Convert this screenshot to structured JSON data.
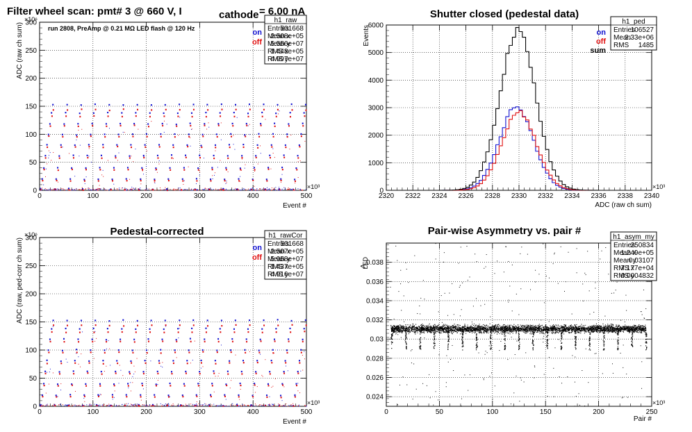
{
  "colors": {
    "on": "#1010d0",
    "off": "#e01010",
    "sum": "#000000",
    "text": "#000000"
  },
  "chart_data": [
    {
      "type": "scatter",
      "id": "raw",
      "title": "Filter wheel scan: pmt#   3 @   660 V, I",
      "title_sub": "cathode",
      "title_tail": "   = 6.00 nA",
      "annotation": "run 2808, PreAmp @ 0.21 MΩ  LED flash @  120 Hz",
      "xlabel": "Event #",
      "ylabel": "ADC (raw ch sum)",
      "x_exp": "×10³",
      "y_exp": "×10⁶",
      "xlim": [
        0,
        500
      ],
      "ylim": [
        0,
        300
      ],
      "xticks": [
        "0",
        "100",
        "200",
        "300",
        "400",
        "500"
      ],
      "yticks": [
        "0",
        "50",
        "100",
        "150",
        "200",
        "250",
        "300"
      ],
      "grid": true,
      "legend": [
        {
          "label": "on",
          "color": "#1010d0"
        },
        {
          "label": "off",
          "color": "#e01010"
        }
      ],
      "legend_position": "top-right",
      "levels": {
        "on": [
          2,
          20,
          40,
          62,
          81,
          100,
          119,
          138,
          153
        ],
        "off": [
          1,
          17,
          37,
          58,
          77,
          96,
          115,
          132,
          144
        ]
      },
      "stats": {
        "name": "h1_raw",
        "rows": [
          [
            "Entries",
            "501668"
          ],
          [
            "Mean x",
            "2.508e+05"
          ],
          [
            "Mean y",
            "5.556e+07"
          ],
          [
            "RMS x",
            "1.448e+05"
          ],
          [
            "RMS y",
            "4.997e+07"
          ]
        ]
      }
    },
    {
      "type": "line",
      "id": "ped",
      "title": "Shutter closed (pedestal data)",
      "xlabel": "ADC (raw ch sum)",
      "ylabel": "Events",
      "x_exp": "×10³",
      "xlim": [
        2320,
        2340
      ],
      "ylim": [
        0,
        6000
      ],
      "xticks": [
        "2320",
        "2322",
        "2324",
        "2326",
        "2328",
        "2330",
        "2332",
        "2334",
        "2336",
        "2338",
        "2340"
      ],
      "yticks": [
        "0",
        "1000",
        "2000",
        "3000",
        "4000",
        "5000",
        "6000"
      ],
      "grid": true,
      "legend": [
        {
          "label": "on",
          "color": "#1010d0"
        },
        {
          "label": "off",
          "color": "#e01010"
        },
        {
          "label": "sum",
          "color": "#000000"
        }
      ],
      "legend_position": "top-right",
      "series": [
        {
          "name": "on",
          "mean": 2329.8,
          "sigma": 1.3,
          "peak": 3000
        },
        {
          "name": "off",
          "mean": 2330.0,
          "sigma": 1.3,
          "peak": 2850
        },
        {
          "name": "sum",
          "mean": 2329.9,
          "sigma": 1.35,
          "peak": 5750
        }
      ],
      "stats": {
        "name": "h1_ped",
        "rows": [
          [
            "Entries",
            "106527"
          ],
          [
            "Mean",
            "2.33e+06"
          ],
          [
            "RMS",
            "1485"
          ]
        ]
      }
    },
    {
      "type": "scatter",
      "id": "rawCor",
      "title": "Pedestal-corrected",
      "xlabel": "Event #",
      "ylabel": "ADC (raw, ped-corr ch sum)",
      "x_exp": "×10³",
      "y_exp": "×10⁶",
      "xlim": [
        0,
        500
      ],
      "ylim": [
        0,
        300
      ],
      "xticks": [
        "0",
        "100",
        "200",
        "300",
        "400",
        "500"
      ],
      "yticks": [
        "0",
        "50",
        "100",
        "150",
        "200",
        "250",
        "300"
      ],
      "grid": true,
      "legend": [
        {
          "label": "on",
          "color": "#1010d0"
        },
        {
          "label": "off",
          "color": "#e01010"
        }
      ],
      "legend_position": "top-right",
      "levels": {
        "on": [
          2,
          20,
          40,
          62,
          81,
          100,
          119,
          138,
          153
        ],
        "off": [
          1,
          17,
          37,
          58,
          77,
          96,
          115,
          132,
          144
        ]
      },
      "stats": {
        "name": "h1_rawCor",
        "rows": [
          [
            "Entries",
            "501668"
          ],
          [
            "Mean x",
            "2.507e+05"
          ],
          [
            "Mean y",
            "5.958e+07"
          ],
          [
            "RMS x",
            "1.437e+05"
          ],
          [
            "RMS y",
            "4.916e+07"
          ]
        ]
      }
    },
    {
      "type": "scatter",
      "id": "asym",
      "title": "Pair-wise Asymmetry vs. pair #",
      "xlabel": "Pair #",
      "ylabel": "A",
      "ylabel_sub": "LED",
      "x_exp": "×10³",
      "xlim": [
        0,
        250
      ],
      "ylim": [
        0.023,
        0.04
      ],
      "xticks": [
        "0",
        "50",
        "100",
        "150",
        "200",
        "250"
      ],
      "yticks": [
        "0.024",
        "0.026",
        "0.028",
        "0.03",
        "0.032",
        "0.034",
        "0.036",
        "0.038"
      ],
      "ytick_values": [
        0.024,
        0.026,
        0.028,
        0.03,
        0.032,
        0.034,
        0.036,
        0.038
      ],
      "grid": true,
      "band_center": 0.0311,
      "band_halfwidth": 0.0005,
      "stats": {
        "name": "h1_asym_my",
        "rows": [
          [
            "Entries",
            "250834"
          ],
          [
            "Mean x",
            "1.249e+05"
          ],
          [
            "Mean y",
            "0.03107"
          ],
          [
            "RMS x",
            "7.177e+04"
          ],
          [
            "RMS y",
            "0.0004832"
          ]
        ]
      }
    }
  ]
}
